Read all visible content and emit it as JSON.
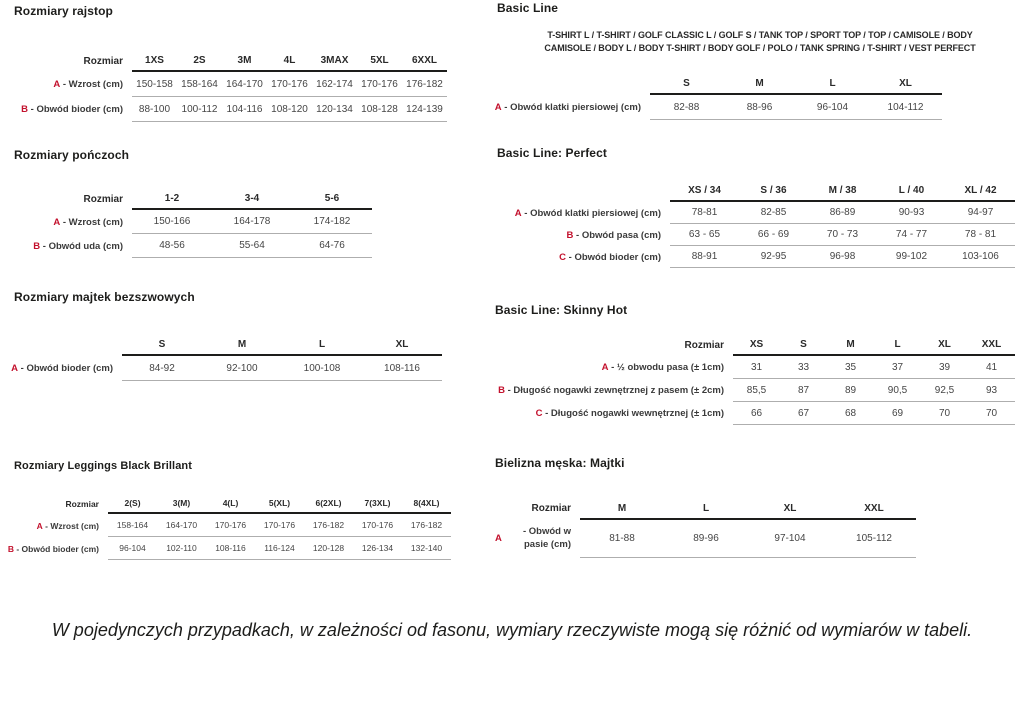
{
  "colors": {
    "accent_red": "#c3112d",
    "heading_text": "#1d1d1b",
    "body_text": "#3e3e3e"
  },
  "note": "W pojedynczych przypadkach, w zależności od fasonu, wymiary rzeczywiste mogą się różnić od wymiarów w tabeli.",
  "sections": {
    "rajstop": {
      "title": "Rozmiary rajstop",
      "table": {
        "corner": "Rozmiar",
        "columns": [
          "1XS",
          "2S",
          "3M",
          "4L",
          "3MAX",
          "5XL",
          "6XXL"
        ],
        "rows": [
          {
            "letter": "A",
            "label": "Wzrost (cm)",
            "values": [
              "150-158",
              "158-164",
              "164-170",
              "170-176",
              "162-174",
              "170-176",
              "176-182"
            ]
          },
          {
            "letter": "B",
            "label": "Obwód bioder (cm)",
            "values": [
              "88-100",
              "100-112",
              "104-116",
              "108-120",
              "120-134",
              "108-128",
              "124-139"
            ]
          }
        ]
      }
    },
    "ponczoch": {
      "title": "Rozmiary pończoch",
      "table": {
        "corner": "Rozmiar",
        "columns": [
          "1-2",
          "3-4",
          "5-6"
        ],
        "rows": [
          {
            "letter": "A",
            "label": "Wzrost (cm)",
            "values": [
              "150-166",
              "164-178",
              "174-182"
            ]
          },
          {
            "letter": "B",
            "label": "Obwód uda (cm)",
            "values": [
              "48-56",
              "55-64",
              "64-76"
            ]
          }
        ]
      }
    },
    "majtek": {
      "title": "Rozmiary majtek bezszwowych",
      "table": {
        "corner": "",
        "columns": [
          "S",
          "M",
          "L",
          "XL"
        ],
        "rows": [
          {
            "letter": "A",
            "label": "Obwód bioder (cm)",
            "values": [
              "84-92",
              "92-100",
              "100-108",
              "108-116"
            ]
          }
        ]
      }
    },
    "leggings": {
      "title": "Rozmiary Leggings Black Brillant",
      "table": {
        "corner": "Rozmiar",
        "columns": [
          "2(S)",
          "3(M)",
          "4(L)",
          "5(XL)",
          "6(2XL)",
          "7(3XL)",
          "8(4XL)"
        ],
        "rows": [
          {
            "letter": "A",
            "label": "Wzrost (cm)",
            "values": [
              "158-164",
              "164-170",
              "170-176",
              "170-176",
              "176-182",
              "170-176",
              "176-182"
            ]
          },
          {
            "letter": "B",
            "label": "Obwód bioder (cm)",
            "values": [
              "96-104",
              "102-110",
              "108-116",
              "116-124",
              "120-128",
              "126-134",
              "132-140"
            ]
          }
        ]
      }
    },
    "basic_line": {
      "title": "Basic Line",
      "subtitle_lines": [
        "T-SHIRT L / T-SHIRT / GOLF CLASSIC L / GOLF S / TANK TOP / SPORT TOP / TOP / CAMISOLE / BODY",
        "CAMISOLE / BODY L / BODY T-SHIRT / BODY GOLF / POLO / TANK SPRING / T-SHIRT / VEST PERFECT"
      ],
      "table": {
        "corner": "",
        "columns": [
          "S",
          "M",
          "L",
          "XL"
        ],
        "rows": [
          {
            "letter": "A",
            "label": "Obwód klatki piersiowej (cm)",
            "values": [
              "82-88",
              "88-96",
              "96-104",
              "104-112"
            ]
          }
        ]
      }
    },
    "perfect": {
      "title": "Basic Line: Perfect",
      "table": {
        "corner": "",
        "columns": [
          "XS / 34",
          "S / 36",
          "M / 38",
          "L / 40",
          "XL / 42"
        ],
        "rows": [
          {
            "letter": "A",
            "label": "Obwód klatki piersiowej (cm)",
            "values": [
              "78-81",
              "82-85",
              "86-89",
              "90-93",
              "94-97"
            ]
          },
          {
            "letter": "B",
            "label": "Obwód pasa (cm)",
            "values": [
              "63 - 65",
              "66 - 69",
              "70 - 73",
              "74 - 77",
              "78 - 81"
            ]
          },
          {
            "letter": "C",
            "label": "Obwód bioder (cm)",
            "values": [
              "88-91",
              "92-95",
              "96-98",
              "99-102",
              "103-106"
            ]
          }
        ]
      }
    },
    "skinny_hot": {
      "title": "Basic Line: Skinny Hot",
      "table": {
        "corner": "Rozmiar",
        "columns": [
          "XS",
          "S",
          "M",
          "L",
          "XL",
          "XXL"
        ],
        "rows": [
          {
            "letter": "A",
            "label": "½ obwodu pasa (± 1cm)",
            "values": [
              "31",
              "33",
              "35",
              "37",
              "39",
              "41"
            ]
          },
          {
            "letter": "B",
            "label": "Długość nogawki zewnętrznej z pasem (± 2cm)",
            "values": [
              "85,5",
              "87",
              "89",
              "90,5",
              "92,5",
              "93"
            ]
          },
          {
            "letter": "C",
            "label": "Długość nogawki wewnętrznej (± 1cm)",
            "values": [
              "66",
              "67",
              "68",
              "69",
              "70",
              "70"
            ]
          }
        ]
      }
    },
    "majtki": {
      "title": "Bielizna męska: Majtki",
      "table": {
        "corner": "Rozmiar",
        "columns": [
          "M",
          "L",
          "XL",
          "XXL"
        ],
        "rows": [
          {
            "letter": "A",
            "label": "Obwód w pasie (cm)",
            "values": [
              "81-88",
              "89-96",
              "97-104",
              "105-112"
            ]
          }
        ]
      }
    }
  }
}
